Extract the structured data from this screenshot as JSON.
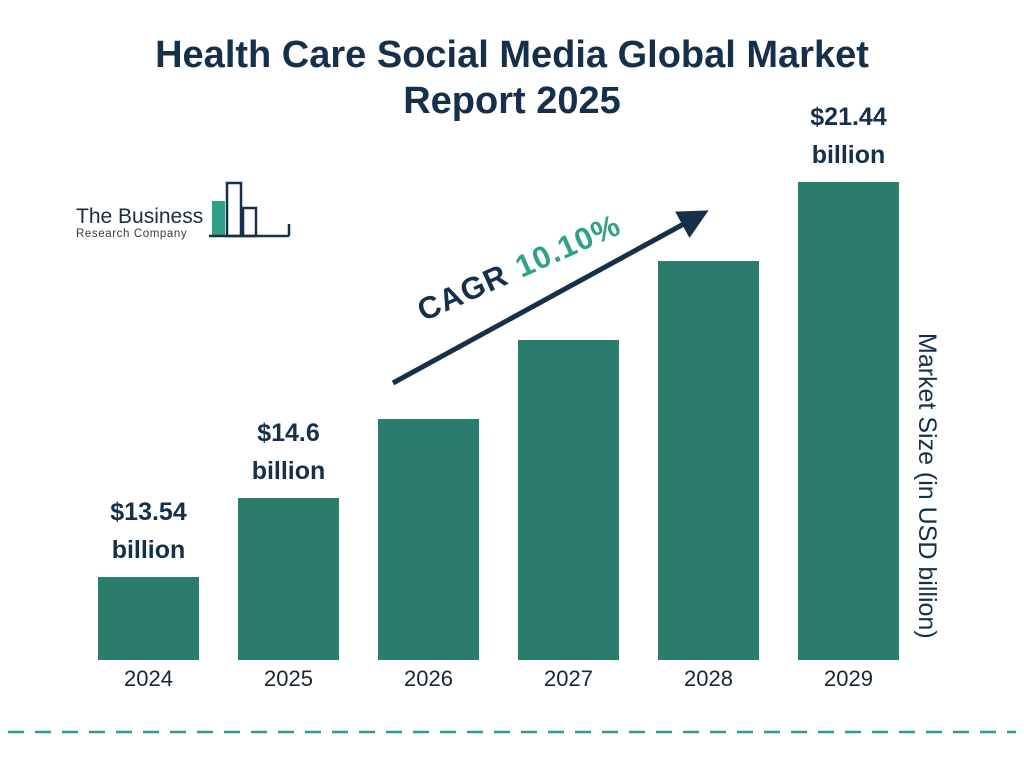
{
  "title": {
    "line1": "Health Care Social Media Global Market",
    "line2": "Report 2025"
  },
  "logo": {
    "name_top": "The Business",
    "name_bottom": "Research Company"
  },
  "cagr": {
    "label": "CAGR",
    "value": "10.10%"
  },
  "right_axis_label": "Market Size (in USD billion)",
  "chart_data": {
    "type": "bar",
    "title": "Health Care Social Media Global Market Report 2025",
    "categories": [
      "2024",
      "2025",
      "2026",
      "2027",
      "2028",
      "2029"
    ],
    "values": [
      13.54,
      14.6,
      16.08,
      17.7,
      19.49,
      21.44
    ],
    "estimated_values": [
      false,
      false,
      true,
      true,
      true,
      false
    ],
    "value_labels": [
      "$13.54 billion",
      "$14.6 billion",
      "",
      "",
      "",
      "$21.44 billion"
    ],
    "cagr": "10.10%",
    "xlabel": "",
    "ylabel": "Market Size (in USD billion)",
    "legend": false,
    "grid": false
  },
  "colors": {
    "bar": "#2a7c6c",
    "navy": "#16304c",
    "accent_green": "#2fa189",
    "dashed_line": "#2a9d8f"
  }
}
